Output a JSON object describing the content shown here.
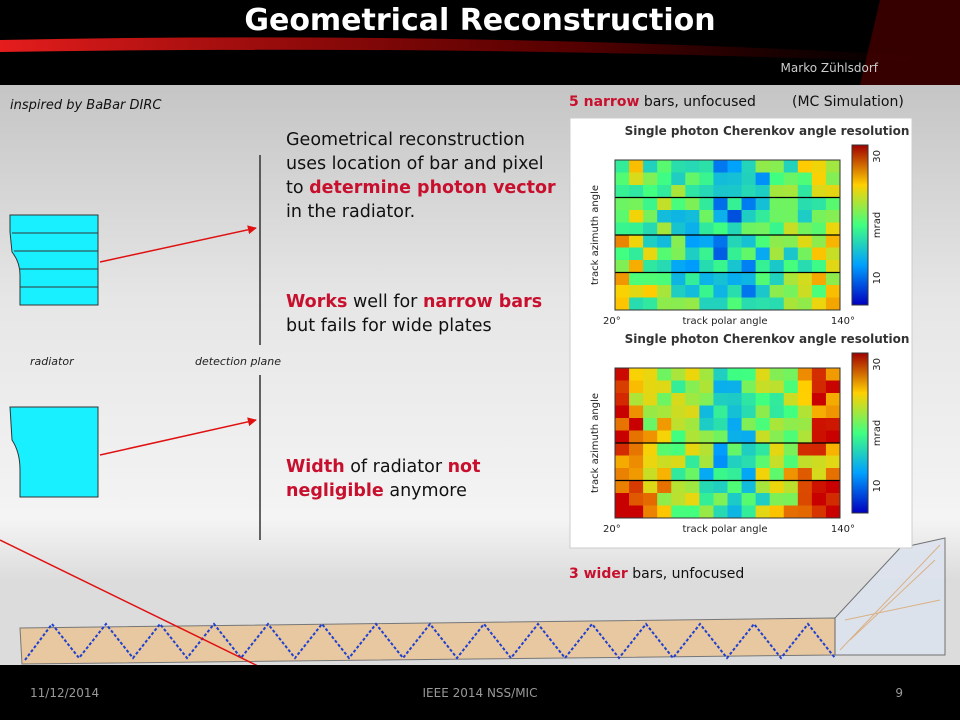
{
  "header": {
    "title": "Geometrical Reconstruction",
    "author": "Marko Zühlsdorf"
  },
  "diagram": {
    "note": "inspired by BaBar DIRC",
    "radiator_label": "radiator",
    "plane_label": "detection plane"
  },
  "body": {
    "paragraphs": [
      [
        {
          "text": "Geometrical reconstruction uses location of bar and pixel to "
        },
        {
          "text": "determine photon vector",
          "em": true
        },
        {
          "text": " in the radiator."
        }
      ],
      [
        {
          "text": "Works",
          "em": true
        },
        {
          "text": " well for "
        },
        {
          "text": "narrow bars",
          "em": true
        },
        {
          "text": " but fails for wide plates"
        }
      ],
      [
        {
          "text": "Width",
          "em": true
        },
        {
          "text": " of radiator "
        },
        {
          "text": "not negligible",
          "em": true
        },
        {
          "text": " anymore"
        }
      ]
    ]
  },
  "figure": {
    "caption_top": [
      {
        "text": "5 narrow",
        "em": true
      },
      {
        "text": " bars, unfocused"
      }
    ],
    "sim_note": "(MC Simulation)",
    "caption_bottom": [
      {
        "text": "3 wider",
        "em": true
      },
      {
        "text": " bars, unfocused"
      }
    ],
    "panels": [
      {
        "title": "Single photon Cherenkov angle resolution",
        "y_label": "track azimuth angle",
        "x_label": "track polar angle",
        "x_min": "20°",
        "x_max": "140°",
        "scale_top": "30",
        "scale_bottom": "10",
        "scale_unit": "mrad"
      },
      {
        "title": "Single photon Cherenkov angle resolution",
        "y_label": "track azimuth angle",
        "x_label": "track polar angle",
        "x_min": "20°",
        "x_max": "140°",
        "scale_top": "30",
        "scale_bottom": "10",
        "scale_unit": "mrad"
      }
    ]
  },
  "footer": {
    "date": "11/12/2014",
    "event": "IEEE 2014 NSS/MIC",
    "page": "9"
  }
}
